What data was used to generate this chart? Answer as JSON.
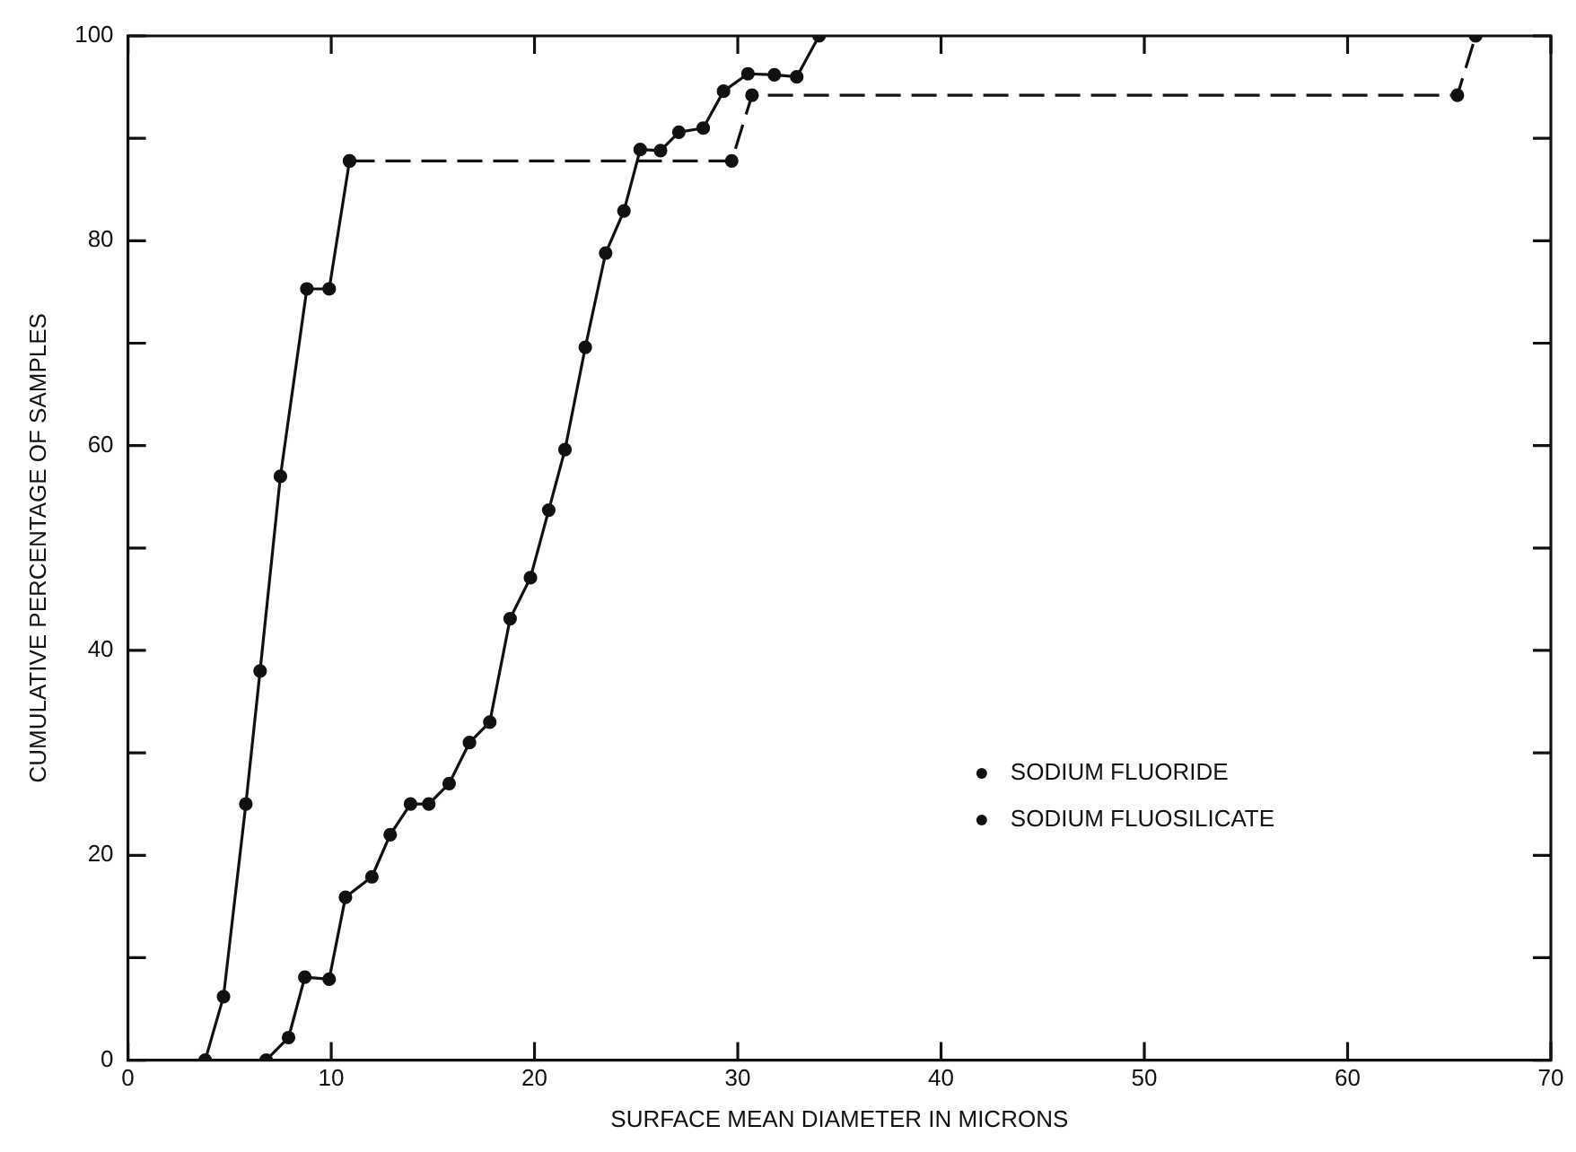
{
  "chart_data": {
    "type": "line",
    "xlabel": "SURFACE MEAN DIAMETER IN MICRONS",
    "ylabel": "CUMULATIVE PERCENTAGE OF SAMPLES",
    "xlim": [
      0,
      70
    ],
    "xticks": [
      0,
      10,
      20,
      30,
      40,
      50,
      60,
      70
    ],
    "ylim": [
      0,
      100
    ],
    "yticks": [
      0,
      {
        "value": 10,
        "label": null
      },
      20,
      {
        "value": 30,
        "label": null
      },
      40,
      {
        "value": 50,
        "label": null
      },
      60,
      {
        "value": 70,
        "label": null
      },
      80,
      {
        "value": 90,
        "label": null
      },
      100
    ],
    "grid": false,
    "legend": "right",
    "marker": "circle",
    "series": [
      {
        "name": "SODIUM FLUORIDE",
        "color": "#111111",
        "line_style": "solid",
        "x": [
          3.8,
          4.7,
          5.8,
          6.5,
          7.5,
          8.8,
          9.9,
          10.9
        ],
        "values": [
          0,
          6.2,
          25,
          38,
          57,
          75.3,
          75.3,
          87.8
        ]
      },
      {
        "color": "#111111",
        "line_style": "dashed",
        "x": [
          10.9,
          29.7,
          30.7,
          65.4,
          66.3
        ],
        "values": [
          87.8,
          87.8,
          94.2,
          94.2,
          100
        ]
      },
      {
        "name": "SODIUM FLUOSILICATE",
        "color": "#111111",
        "line_style": "solid",
        "x": [
          6.8,
          7.9,
          8.7,
          9.9,
          10.7,
          12.0,
          12.9,
          13.9,
          14.8,
          15.8,
          16.8,
          17.8,
          18.8,
          19.8,
          20.7,
          21.5,
          22.5,
          23.5,
          24.4,
          25.2,
          26.2,
          27.1,
          28.3,
          29.3,
          30.5,
          31.8,
          32.9,
          34.0
        ],
        "values": [
          0,
          2.2,
          8.1,
          7.9,
          15.9,
          17.9,
          22,
          25,
          25,
          27,
          31,
          33,
          43.1,
          47.1,
          53.7,
          59.6,
          69.6,
          78.8,
          82.9,
          88.9,
          88.8,
          90.6,
          91,
          94.6,
          96.3,
          96.2,
          96,
          100
        ]
      }
    ]
  }
}
